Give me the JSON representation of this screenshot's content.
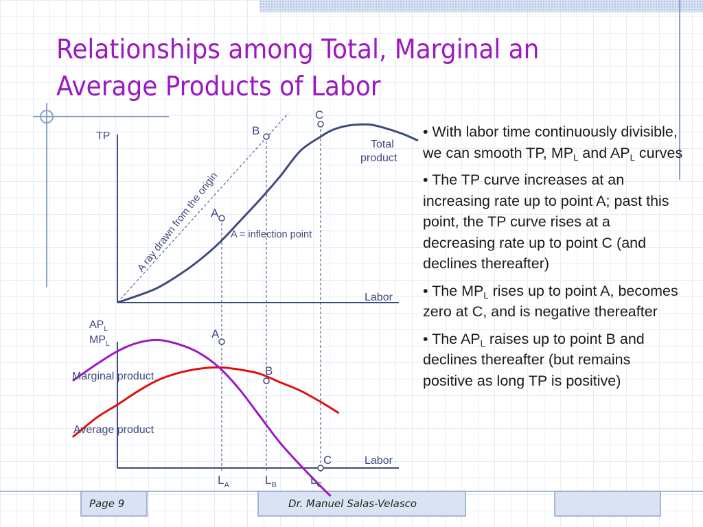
{
  "title": {
    "line1": "Relationships among Total, Marginal an",
    "line2": "Average Products of Labor"
  },
  "diagram": {
    "top": {
      "y_axis_label": "TP",
      "x_axis_label": "Labor",
      "curve_label_line1": "Total",
      "curve_label_line2": "product",
      "ray_label": "A ray drawn from the origin",
      "inflection_note": "A = inflection point",
      "points": {
        "A": "A",
        "B": "B",
        "C": "C"
      },
      "tp_curve": [
        [
          0.0,
          0.0
        ],
        [
          0.18,
          0.073
        ],
        [
          0.3,
          0.152
        ],
        [
          0.4,
          0.233
        ],
        [
          0.5,
          0.331
        ],
        [
          0.6,
          0.45
        ],
        [
          0.7,
          0.571
        ],
        [
          0.8,
          0.701
        ],
        [
          0.9,
          0.844
        ],
        [
          1.0,
          0.923
        ],
        [
          1.05,
          0.956
        ],
        [
          1.1,
          0.976
        ],
        [
          1.15,
          0.987
        ],
        [
          1.2,
          0.991
        ],
        [
          1.25,
          0.989
        ],
        [
          1.32,
          0.97
        ],
        [
          1.4,
          0.94
        ],
        [
          1.48,
          0.901
        ]
      ]
    },
    "bottom": {
      "y_axis_label_ap": "AP",
      "y_axis_label_ap_sub": "L",
      "y_axis_label_mp": "MP",
      "y_axis_label_mp_sub": "L",
      "x_axis_label": "Labor",
      "marginal_label": "Marginal product",
      "average_label": "Average product",
      "points": {
        "A": "A",
        "B": "B",
        "C": "C"
      },
      "labor_labels": [
        {
          "main": "L",
          "sub": "A"
        },
        {
          "main": "L",
          "sub": "B"
        },
        {
          "main": "L",
          "sub": "C"
        }
      ],
      "mp_curve": [
        [
          -0.22,
          0.62
        ],
        [
          -0.1,
          0.74
        ],
        [
          0.0,
          0.83
        ],
        [
          0.1,
          0.89
        ],
        [
          0.2,
          0.91
        ],
        [
          0.3,
          0.88
        ],
        [
          0.4,
          0.82
        ],
        [
          0.5,
          0.715
        ],
        [
          0.6,
          0.56
        ],
        [
          0.7,
          0.37
        ],
        [
          0.8,
          0.18
        ],
        [
          0.9,
          0.02
        ],
        [
          1.0,
          -0.13
        ],
        [
          1.05,
          -0.2
        ]
      ],
      "ap_curve": [
        [
          -0.22,
          0.22
        ],
        [
          -0.1,
          0.36
        ],
        [
          0.0,
          0.45
        ],
        [
          0.1,
          0.545
        ],
        [
          0.2,
          0.625
        ],
        [
          0.3,
          0.675
        ],
        [
          0.4,
          0.705
        ],
        [
          0.5,
          0.715
        ],
        [
          0.6,
          0.7
        ],
        [
          0.7,
          0.67
        ],
        [
          0.8,
          0.61
        ],
        [
          0.9,
          0.55
        ],
        [
          1.0,
          0.47
        ],
        [
          1.09,
          0.39
        ]
      ]
    }
  },
  "bullets": [
    {
      "parts": [
        {
          "t": "• With labor time continuously divisible, we can smooth TP, MP"
        },
        {
          "sub": "L"
        },
        {
          "t": " and AP"
        },
        {
          "sub": "L"
        },
        {
          "t": " curves"
        }
      ]
    },
    {
      "parts": [
        {
          "t": "• The TP curve increases at an increasing rate up to point A; past this point, the TP curve rises at a decreasing rate up to point C (and declines thereafter)"
        }
      ]
    },
    {
      "parts": [
        {
          "t": "• The MP"
        },
        {
          "sub": "L"
        },
        {
          "t": " rises up to point A, becomes zero at C, and is negative thereafter"
        }
      ]
    },
    {
      "parts": [
        {
          "t": "• The AP"
        },
        {
          "sub": "L"
        },
        {
          "t": " raises up to point B and declines thereafter (but remains positive as long TP is positive)"
        }
      ]
    }
  ],
  "footer": {
    "page": "Page 9",
    "author": "Dr. Manuel Salas-Velasco"
  },
  "colors": {
    "title": "#9b19c0",
    "tp_curve": "#3d4a7d",
    "marginal_curve": "#9b19c0",
    "average_curve": "#e01010",
    "axes": "#3d4a7d",
    "deco": "#8ea2c9"
  }
}
